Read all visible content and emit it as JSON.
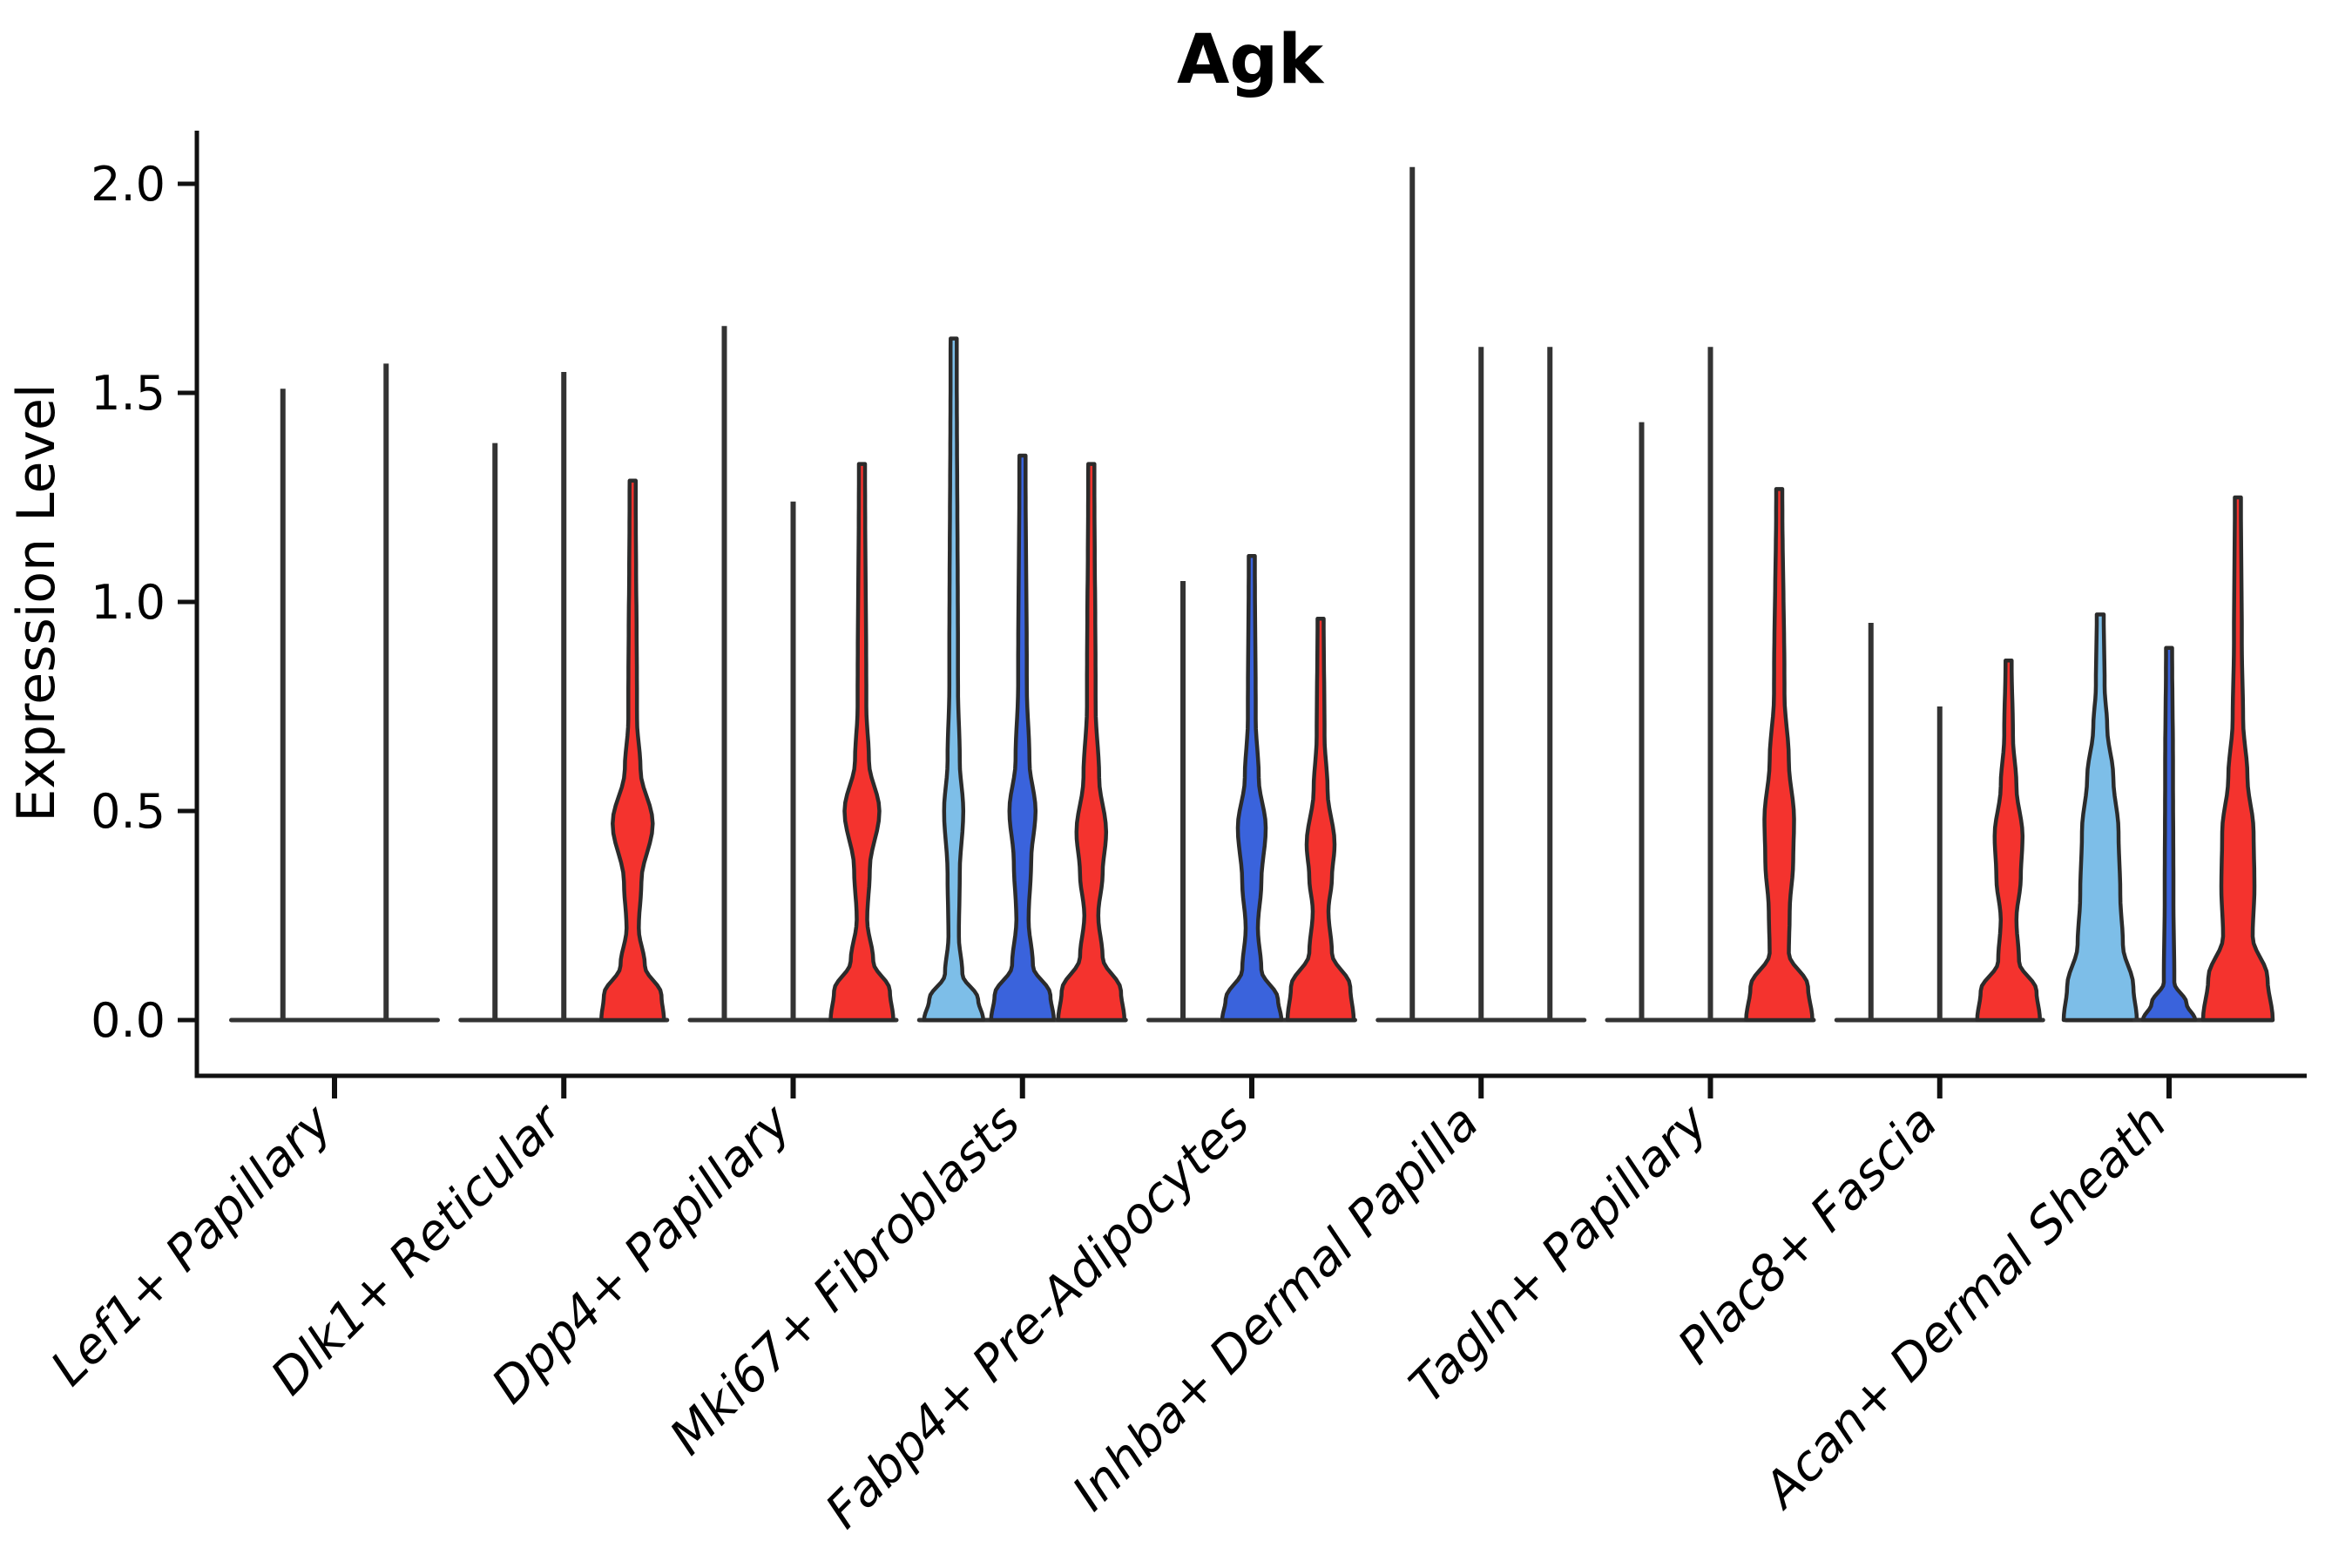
{
  "title": "Agk",
  "y_axis": {
    "label": "Expression Level",
    "tick_labels": [
      "0.0",
      "0.5",
      "1.0",
      "1.5",
      "2.0"
    ],
    "tick_values": [
      0.0,
      0.5,
      1.0,
      1.5,
      2.0
    ]
  },
  "chart_data": {
    "type": "violin",
    "title": "Agk",
    "ylabel": "Expression Level",
    "ylim": [
      0,
      2.1
    ],
    "grid": false,
    "legend_position": "none",
    "palette": {
      "black": "#333333",
      "lightblue": "#7DBEE8",
      "blue": "#3A63DC",
      "red": "#F4332E"
    },
    "outline_color": "#2b2b2b",
    "groups": [
      {
        "label": "Lef1+ Papillary",
        "violins": [
          {
            "color": "black",
            "max": 1.51,
            "kind": "spike"
          },
          {
            "color": "black",
            "max": 1.57,
            "kind": "spike"
          }
        ]
      },
      {
        "label": "Dlk1+ Reticular",
        "violins": [
          {
            "color": "black",
            "max": 1.38,
            "kind": "spike"
          },
          {
            "color": "black",
            "max": 1.55,
            "kind": "spike"
          },
          {
            "color": "red",
            "max": 1.29,
            "kind": "violin",
            "profile": [
              [
                0,
                36
              ],
              [
                0.06,
                33
              ],
              [
                0.13,
                14
              ],
              [
                0.22,
                7
              ],
              [
                0.33,
                10
              ],
              [
                0.47,
                23
              ],
              [
                0.6,
                9
              ],
              [
                0.72,
                5
              ],
              [
                1.29,
                3.5
              ]
            ]
          }
        ]
      },
      {
        "label": "Dpp4+ Papillary",
        "violins": [
          {
            "color": "black",
            "max": 1.66,
            "kind": "spike"
          },
          {
            "color": "black",
            "max": 1.24,
            "kind": "spike"
          },
          {
            "color": "red",
            "max": 1.33,
            "kind": "violin",
            "profile": [
              [
                0,
                36
              ],
              [
                0.07,
                32
              ],
              [
                0.14,
                13
              ],
              [
                0.24,
                6
              ],
              [
                0.36,
                9
              ],
              [
                0.5,
                20
              ],
              [
                0.62,
                8
              ],
              [
                0.75,
                5
              ],
              [
                1.33,
                3.5
              ]
            ]
          }
        ]
      },
      {
        "label": "Mki67+ Fibroblasts",
        "violins": [
          {
            "color": "lightblue",
            "max": 1.63,
            "kind": "violin",
            "profile": [
              [
                0,
                34
              ],
              [
                0.05,
                28
              ],
              [
                0.11,
                10
              ],
              [
                0.2,
                6
              ],
              [
                0.35,
                7
              ],
              [
                0.5,
                11
              ],
              [
                0.62,
                7
              ],
              [
                0.8,
                5
              ],
              [
                1.63,
                3.5
              ]
            ]
          },
          {
            "color": "blue",
            "max": 1.35,
            "kind": "violin",
            "profile": [
              [
                0,
                36
              ],
              [
                0.06,
                32
              ],
              [
                0.13,
                12
              ],
              [
                0.24,
                7
              ],
              [
                0.38,
                10
              ],
              [
                0.5,
                15
              ],
              [
                0.62,
                8
              ],
              [
                0.8,
                5
              ],
              [
                1.35,
                3.5
              ]
            ]
          },
          {
            "color": "red",
            "max": 1.33,
            "kind": "violin",
            "profile": [
              [
                0,
                38
              ],
              [
                0.07,
                34
              ],
              [
                0.15,
                13
              ],
              [
                0.25,
                8
              ],
              [
                0.35,
                13
              ],
              [
                0.45,
                17
              ],
              [
                0.58,
                9
              ],
              [
                0.75,
                5
              ],
              [
                1.33,
                3.5
              ]
            ]
          }
        ]
      },
      {
        "label": "Fabp4+ Pre-Adipocytes",
        "violins": [
          {
            "color": "black",
            "max": 1.05,
            "kind": "spike"
          },
          {
            "color": "blue",
            "max": 1.11,
            "kind": "violin",
            "profile": [
              [
                0,
                34
              ],
              [
                0.05,
                30
              ],
              [
                0.12,
                11
              ],
              [
                0.22,
                7
              ],
              [
                0.33,
                11
              ],
              [
                0.46,
                16
              ],
              [
                0.58,
                8
              ],
              [
                0.72,
                4.5
              ],
              [
                1.11,
                3.5
              ]
            ]
          },
          {
            "color": "red",
            "max": 0.96,
            "kind": "violin",
            "profile": [
              [
                0,
                38
              ],
              [
                0.08,
                34
              ],
              [
                0.16,
                13
              ],
              [
                0.26,
                9
              ],
              [
                0.34,
                13
              ],
              [
                0.42,
                16
              ],
              [
                0.55,
                8
              ],
              [
                0.68,
                4.5
              ],
              [
                0.96,
                3.5
              ]
            ]
          }
        ]
      },
      {
        "label": "Inhba+ Dermal Papilla",
        "violins": [
          {
            "color": "black",
            "max": 2.04,
            "kind": "spike"
          },
          {
            "color": "black",
            "max": 1.61,
            "kind": "spike"
          },
          {
            "color": "black",
            "max": 1.61,
            "kind": "spike"
          }
        ]
      },
      {
        "label": "Tagln+ Papillary",
        "violins": [
          {
            "color": "black",
            "max": 1.43,
            "kind": "spike"
          },
          {
            "color": "black",
            "max": 1.61,
            "kind": "spike"
          },
          {
            "color": "red",
            "max": 1.27,
            "kind": "violin",
            "profile": [
              [
                0,
                38
              ],
              [
                0.08,
                33
              ],
              [
                0.16,
                11
              ],
              [
                0.26,
                12
              ],
              [
                0.38,
                16
              ],
              [
                0.48,
                17
              ],
              [
                0.62,
                11
              ],
              [
                0.78,
                6
              ],
              [
                1.27,
                3.5
              ]
            ]
          }
        ]
      },
      {
        "label": "Plac8+ Fascia",
        "violins": [
          {
            "color": "black",
            "max": 0.95,
            "kind": "spike"
          },
          {
            "color": "black",
            "max": 0.75,
            "kind": "spike"
          },
          {
            "color": "red",
            "max": 0.86,
            "kind": "violin",
            "profile": [
              [
                0,
                36
              ],
              [
                0.07,
                32
              ],
              [
                0.14,
                12
              ],
              [
                0.24,
                9
              ],
              [
                0.34,
                14
              ],
              [
                0.44,
                16
              ],
              [
                0.56,
                9
              ],
              [
                0.68,
                5
              ],
              [
                0.86,
                3.5
              ]
            ]
          }
        ]
      },
      {
        "label": "Acan+ Dermal Sheath",
        "violins": [
          {
            "color": "lightblue",
            "max": 0.97,
            "kind": "violin",
            "profile": [
              [
                0,
                42
              ],
              [
                0.08,
                38
              ],
              [
                0.18,
                26
              ],
              [
                0.3,
                23
              ],
              [
                0.45,
                21
              ],
              [
                0.58,
                15
              ],
              [
                0.7,
                8
              ],
              [
                0.8,
                5
              ],
              [
                0.97,
                4
              ]
            ]
          },
          {
            "color": "blue",
            "max": 0.89,
            "kind": "violin",
            "profile": [
              [
                0,
                30
              ],
              [
                0.04,
                20
              ],
              [
                0.09,
                6
              ],
              [
                0.3,
                5
              ],
              [
                0.6,
                4.5
              ],
              [
                0.89,
                3.5
              ]
            ]
          },
          {
            "color": "red",
            "max": 1.25,
            "kind": "violin",
            "profile": [
              [
                0,
                40
              ],
              [
                0.1,
                34
              ],
              [
                0.2,
                17
              ],
              [
                0.32,
                19
              ],
              [
                0.45,
                18
              ],
              [
                0.58,
                11
              ],
              [
                0.72,
                6
              ],
              [
                0.9,
                4.5
              ],
              [
                1.25,
                3.5
              ]
            ]
          }
        ]
      }
    ]
  }
}
